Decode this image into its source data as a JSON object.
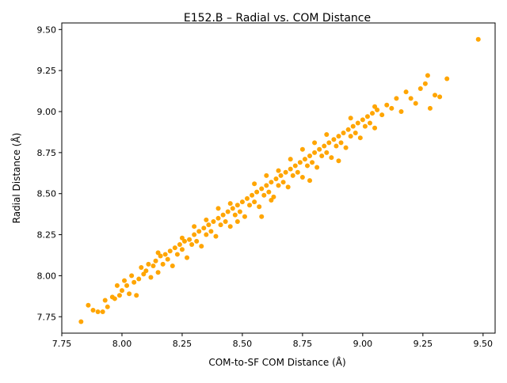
{
  "chart_data": {
    "type": "scatter",
    "title": "E152.B – Radial vs. COM Distance",
    "xlabel": "COM-to-SF COM Distance (Å)",
    "ylabel": "Radial Distance (Å)",
    "xlim": [
      7.75,
      9.55
    ],
    "ylim": [
      7.65,
      9.54
    ],
    "xticks": [
      7.75,
      8.0,
      8.25,
      8.5,
      8.75,
      9.0,
      9.25,
      9.5
    ],
    "xtick_labels": [
      "7.75",
      "8.00",
      "8.25",
      "8.50",
      "8.75",
      "9.00",
      "9.25",
      "9.50"
    ],
    "yticks": [
      7.75,
      8.0,
      8.25,
      8.5,
      8.75,
      9.0,
      9.25,
      9.5
    ],
    "ytick_labels": [
      "7.75",
      "8.00",
      "8.25",
      "8.50",
      "8.75",
      "9.00",
      "9.25",
      "9.50"
    ],
    "grid": false,
    "color": "#FFA500",
    "series": [
      {
        "points": [
          [
            7.83,
            7.72
          ],
          [
            7.86,
            7.82
          ],
          [
            7.88,
            7.79
          ],
          [
            7.9,
            7.78
          ],
          [
            7.92,
            7.78
          ],
          [
            7.93,
            7.85
          ],
          [
            7.94,
            7.81
          ],
          [
            7.96,
            7.87
          ],
          [
            7.97,
            7.86
          ],
          [
            7.98,
            7.94
          ],
          [
            7.99,
            7.88
          ],
          [
            8.0,
            7.91
          ],
          [
            8.01,
            7.97
          ],
          [
            8.02,
            7.94
          ],
          [
            8.03,
            7.89
          ],
          [
            8.04,
            8.0
          ],
          [
            8.05,
            7.96
          ],
          [
            8.06,
            7.88
          ],
          [
            8.07,
            7.98
          ],
          [
            8.08,
            8.05
          ],
          [
            8.09,
            8.01
          ],
          [
            8.1,
            8.03
          ],
          [
            8.11,
            8.07
          ],
          [
            8.12,
            7.99
          ],
          [
            8.13,
            8.06
          ],
          [
            8.14,
            8.09
          ],
          [
            8.15,
            8.02
          ],
          [
            8.16,
            8.12
          ],
          [
            8.17,
            8.07
          ],
          [
            8.18,
            8.13
          ],
          [
            8.19,
            8.1
          ],
          [
            8.2,
            8.15
          ],
          [
            8.21,
            8.06
          ],
          [
            8.22,
            8.17
          ],
          [
            8.23,
            8.13
          ],
          [
            8.24,
            8.19
          ],
          [
            8.25,
            8.16
          ],
          [
            8.26,
            8.21
          ],
          [
            8.27,
            8.11
          ],
          [
            8.28,
            8.22
          ],
          [
            8.29,
            8.19
          ],
          [
            8.3,
            8.25
          ],
          [
            8.31,
            8.21
          ],
          [
            8.32,
            8.27
          ],
          [
            8.33,
            8.18
          ],
          [
            8.34,
            8.29
          ],
          [
            8.35,
            8.25
          ],
          [
            8.36,
            8.31
          ],
          [
            8.37,
            8.27
          ],
          [
            8.38,
            8.33
          ],
          [
            8.39,
            8.24
          ],
          [
            8.4,
            8.35
          ],
          [
            8.41,
            8.31
          ],
          [
            8.42,
            8.37
          ],
          [
            8.43,
            8.33
          ],
          [
            8.44,
            8.39
          ],
          [
            8.45,
            8.3
          ],
          [
            8.46,
            8.41
          ],
          [
            8.47,
            8.37
          ],
          [
            8.48,
            8.43
          ],
          [
            8.49,
            8.39
          ],
          [
            8.5,
            8.45
          ],
          [
            8.51,
            8.36
          ],
          [
            8.52,
            8.47
          ],
          [
            8.53,
            8.43
          ],
          [
            8.54,
            8.49
          ],
          [
            8.55,
            8.45
          ],
          [
            8.56,
            8.51
          ],
          [
            8.57,
            8.42
          ],
          [
            8.58,
            8.53
          ],
          [
            8.59,
            8.49
          ],
          [
            8.6,
            8.55
          ],
          [
            8.61,
            8.51
          ],
          [
            8.62,
            8.57
          ],
          [
            8.63,
            8.48
          ],
          [
            8.64,
            8.59
          ],
          [
            8.65,
            8.55
          ],
          [
            8.66,
            8.61
          ],
          [
            8.67,
            8.57
          ],
          [
            8.68,
            8.63
          ],
          [
            8.69,
            8.54
          ],
          [
            8.7,
            8.65
          ],
          [
            8.71,
            8.61
          ],
          [
            8.72,
            8.67
          ],
          [
            8.73,
            8.63
          ],
          [
            8.74,
            8.69
          ],
          [
            8.75,
            8.6
          ],
          [
            8.76,
            8.71
          ],
          [
            8.77,
            8.67
          ],
          [
            8.78,
            8.73
          ],
          [
            8.79,
            8.69
          ],
          [
            8.8,
            8.75
          ],
          [
            8.81,
            8.66
          ],
          [
            8.82,
            8.77
          ],
          [
            8.83,
            8.73
          ],
          [
            8.84,
            8.79
          ],
          [
            8.85,
            8.75
          ],
          [
            8.86,
            8.81
          ],
          [
            8.87,
            8.72
          ],
          [
            8.88,
            8.83
          ],
          [
            8.89,
            8.79
          ],
          [
            8.9,
            8.85
          ],
          [
            8.91,
            8.81
          ],
          [
            8.92,
            8.87
          ],
          [
            8.93,
            8.78
          ],
          [
            8.94,
            8.89
          ],
          [
            8.95,
            8.85
          ],
          [
            8.96,
            8.91
          ],
          [
            8.97,
            8.87
          ],
          [
            8.98,
            8.93
          ],
          [
            8.99,
            8.84
          ],
          [
            9.0,
            8.95
          ],
          [
            9.01,
            8.91
          ],
          [
            9.02,
            8.97
          ],
          [
            9.03,
            8.93
          ],
          [
            9.04,
            8.99
          ],
          [
            9.05,
            8.9
          ],
          [
            9.06,
            9.01
          ],
          [
            9.08,
            8.98
          ],
          [
            9.1,
            9.04
          ],
          [
            9.12,
            9.02
          ],
          [
            9.14,
            9.08
          ],
          [
            9.16,
            9.0
          ],
          [
            9.18,
            9.12
          ],
          [
            9.2,
            9.08
          ],
          [
            9.22,
            9.05
          ],
          [
            9.24,
            9.14
          ],
          [
            9.26,
            9.17
          ],
          [
            9.27,
            9.22
          ],
          [
            9.28,
            9.02
          ],
          [
            9.3,
            9.1
          ],
          [
            9.32,
            9.09
          ],
          [
            9.35,
            9.2
          ],
          [
            9.48,
            9.44
          ],
          [
            8.45,
            8.44
          ],
          [
            8.55,
            8.56
          ],
          [
            8.65,
            8.64
          ],
          [
            8.75,
            8.77
          ],
          [
            8.85,
            8.86
          ],
          [
            8.35,
            8.34
          ],
          [
            8.25,
            8.23
          ],
          [
            8.15,
            8.14
          ],
          [
            8.95,
            8.96
          ],
          [
            9.05,
            9.03
          ],
          [
            8.48,
            8.33
          ],
          [
            8.62,
            8.46
          ],
          [
            8.78,
            8.58
          ],
          [
            8.9,
            8.7
          ],
          [
            8.58,
            8.36
          ],
          [
            8.4,
            8.41
          ],
          [
            8.6,
            8.61
          ],
          [
            8.8,
            8.81
          ],
          [
            8.3,
            8.3
          ],
          [
            8.7,
            8.71
          ]
        ]
      }
    ]
  }
}
